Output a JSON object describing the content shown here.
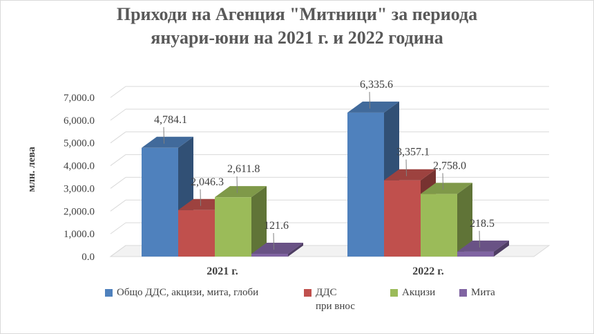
{
  "chart_data": {
    "type": "bar",
    "title_line1": "Приходи на Агенция \"Митници\" за периода",
    "title_line2": "януари-юни на 2021 г. и 2022 година",
    "ylabel": "млн. лева",
    "xlabel": "",
    "ylim": [
      0,
      7000
    ],
    "yticks": [
      "0.0",
      "1,000.0",
      "2,000.0",
      "3,000.0",
      "4,000.0",
      "5,000.0",
      "6,000.0",
      "7,000.0"
    ],
    "categories": [
      "2021 г.",
      "2022 г."
    ],
    "grid": true,
    "three_d": true,
    "legend_position": "bottom",
    "series": [
      {
        "name": "Общо ДДС, акцизи, мита, глоби",
        "values": [
          4784.1,
          6335.6
        ],
        "labels": [
          "4,784.1",
          "6,335.6"
        ],
        "color": "#4f81bd"
      },
      {
        "name": "ДДС при внос",
        "name_line1": "ДДС",
        "name_line2": "при внос",
        "values": [
          2046.3,
          3357.1
        ],
        "labels": [
          "2,046.3",
          "3,357.1"
        ],
        "color": "#c0504d"
      },
      {
        "name": "Акцизи",
        "values": [
          2611.8,
          2758.0
        ],
        "labels": [
          "2,611.8",
          "2,758.0"
        ],
        "color": "#9bbb59"
      },
      {
        "name": "Мита",
        "values": [
          121.6,
          218.5
        ],
        "labels": [
          "121.6",
          "218.5"
        ],
        "color": "#8064a2"
      }
    ]
  }
}
